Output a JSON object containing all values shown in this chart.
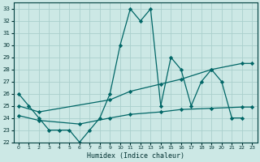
{
  "xlabel": "Humidex (Indice chaleur)",
  "ylabel": "",
  "xlim": [
    -0.5,
    23.5
  ],
  "ylim": [
    22,
    33.5
  ],
  "yticks": [
    22,
    23,
    24,
    25,
    26,
    27,
    28,
    29,
    30,
    31,
    32,
    33
  ],
  "xticks": [
    0,
    1,
    2,
    3,
    4,
    5,
    6,
    7,
    8,
    9,
    10,
    11,
    12,
    13,
    14,
    15,
    16,
    17,
    18,
    19,
    20,
    21,
    22,
    23
  ],
  "bg_color": "#cce8e5",
  "grid_color": "#aacfcc",
  "line_color": "#006666",
  "series1_x": [
    0,
    1,
    2,
    3,
    4,
    5,
    6,
    7,
    8,
    9,
    10,
    11,
    12,
    13,
    14,
    15,
    16,
    17,
    18,
    19,
    20,
    21,
    22
  ],
  "series1_y": [
    26,
    25,
    24,
    23,
    23,
    23,
    22,
    23,
    24,
    26,
    30,
    33,
    32,
    33,
    25,
    29,
    28,
    25,
    27,
    28,
    27,
    24,
    24
  ],
  "series2_x": [
    0,
    2,
    9,
    11,
    14,
    16,
    19,
    22,
    23
  ],
  "series2_y": [
    25.0,
    24.5,
    25.5,
    26.2,
    26.8,
    27.2,
    28.0,
    28.5,
    28.5
  ],
  "series3_x": [
    0,
    2,
    6,
    9,
    11,
    14,
    16,
    19,
    22,
    23
  ],
  "series3_y": [
    24.2,
    23.8,
    23.5,
    24.0,
    24.3,
    24.5,
    24.7,
    24.8,
    24.9,
    24.9
  ]
}
